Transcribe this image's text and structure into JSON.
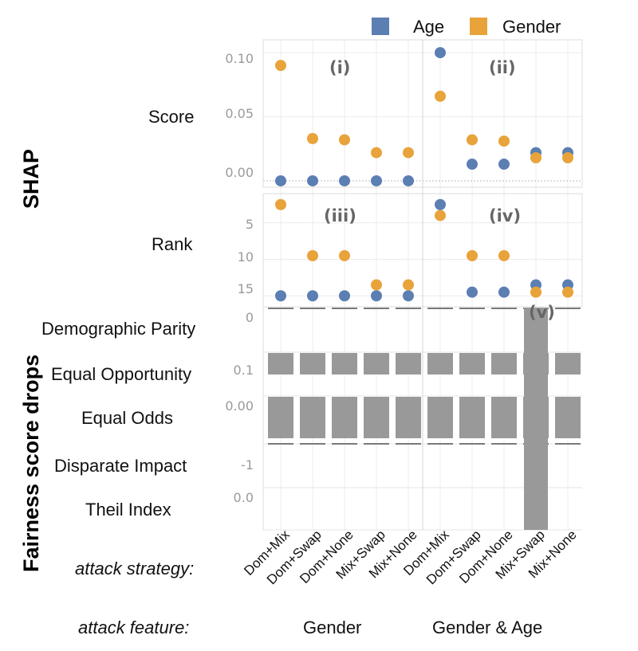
{
  "chart_data": {
    "type": "scatter",
    "legend": {
      "placement": "top-right",
      "entries": [
        {
          "name": "Age",
          "color": "#5b7fb3"
        },
        {
          "name": "Gender",
          "color": "#e8a33b"
        }
      ]
    },
    "grid": true,
    "facets": {
      "row_group_labels": {
        "shap": "SHAP",
        "fairness": "Fairness score drops"
      },
      "panel_tags": [
        "(i)",
        "(ii)",
        "(iii)",
        "(iv)",
        "(v)"
      ],
      "x_title": "attack strategy:",
      "group_title": "attack feature:",
      "groups": [
        {
          "name": "Gender",
          "categories": [
            "Dom+Mix",
            "Dom+Swap",
            "Dom+None",
            "Mix+Swap",
            "Mix+None"
          ]
        },
        {
          "name": "Gender & Age",
          "categories": [
            "Dom+Mix",
            "Dom+Swap",
            "Dom+None",
            "Mix+Swap",
            "Mix+None"
          ]
        }
      ]
    },
    "score": {
      "label": "Score",
      "yticks": [
        "0.00",
        "0.05",
        "0.10"
      ],
      "ylim": [
        -0.005,
        0.11
      ],
      "series": [
        {
          "name": "Age",
          "gender_group": [
            0.0,
            0.0,
            0.0,
            0.0,
            0.0
          ],
          "gender_age_group": [
            0.1,
            0.013,
            0.013,
            0.022,
            0.022
          ]
        },
        {
          "name": "Gender",
          "gender_group": [
            0.09,
            0.033,
            0.032,
            0.022,
            0.022
          ],
          "gender_age_group": [
            0.066,
            0.032,
            0.031,
            0.018,
            0.018
          ]
        }
      ]
    },
    "rank": {
      "label": "Rank",
      "yticks": [
        "5",
        "10",
        "15"
      ],
      "ylim": [
        1,
        16.5
      ],
      "reversed": true,
      "series": [
        {
          "name": "Age",
          "gender_group": [
            15,
            15,
            15,
            15,
            15
          ],
          "gender_age_group": [
            2.5,
            14.5,
            14.5,
            13.5,
            13.5
          ]
        },
        {
          "name": "Gender",
          "gender_group": [
            2.5,
            9.5,
            9.5,
            13.5,
            13.5
          ],
          "gender_age_group": [
            4,
            9.5,
            9.5,
            14.5,
            14.5
          ]
        }
      ]
    },
    "fairness": {
      "metrics": [
        {
          "label": "Demographic Parity",
          "tick": "0"
        },
        {
          "label": "Equal Opportunity",
          "tick": "0.1"
        },
        {
          "label": "Equal Odds",
          "tick": "0.00"
        },
        {
          "label": "Disparate Impact",
          "tick": "-1"
        },
        {
          "label": "Theil  Index",
          "tick": "0.0"
        }
      ]
    }
  }
}
